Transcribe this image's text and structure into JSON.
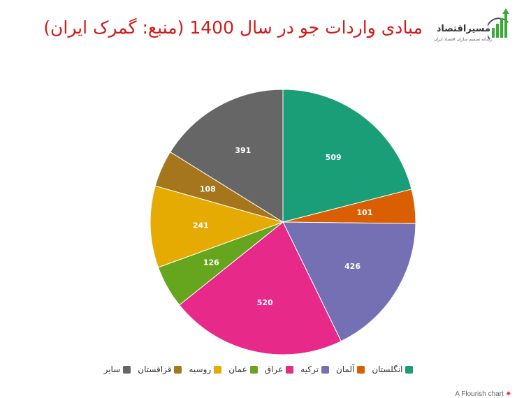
{
  "header": {
    "title": "مبادی واردات جو در سال 1400 (منبع: گمرک ایران)",
    "logo_name": "مسیراقتصاد",
    "logo_tagline": "رسانه تصمیم سازان اقتصاد ایران",
    "logo_icon": "growth-bars-arrow-icon"
  },
  "chart_data": {
    "type": "pie",
    "categories": [
      "انگلستان",
      "آلمان",
      "ترکیه",
      "عراق",
      "عمان",
      "روسیه",
      "قزاقستان",
      "سایر"
    ],
    "values": [
      509,
      101,
      426,
      520,
      126,
      241,
      108,
      391
    ],
    "colors": [
      "#1a9e77",
      "#d95f02",
      "#7570b3",
      "#e7298a",
      "#66a61e",
      "#e6ab02",
      "#a6761d",
      "#666666"
    ],
    "start_angle_deg": 0,
    "direction": "clockwise",
    "data_labels": true,
    "legend": "bottom"
  },
  "footer": {
    "credit": "A Flourish chart",
    "credit_icon": "flourish-star-icon"
  }
}
